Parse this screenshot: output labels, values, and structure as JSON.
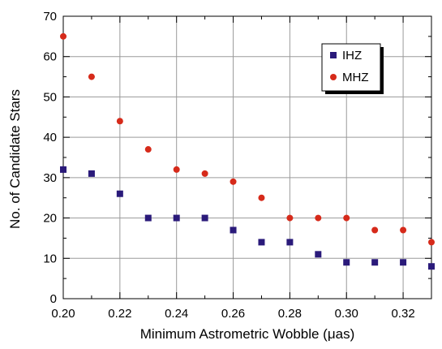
{
  "chart_data": {
    "type": "scatter",
    "title": "",
    "xlabel": "Minimum Astrometric Wobble (μas)",
    "ylabel": "No. of Candidate Stars",
    "xlim": [
      0.2,
      0.33
    ],
    "ylim": [
      0,
      70
    ],
    "xticks": [
      0.2,
      0.22,
      0.24,
      0.26,
      0.28,
      0.3,
      0.32
    ],
    "xtick_labels": [
      "0.20",
      "0.22",
      "0.24",
      "0.26",
      "0.28",
      "0.30",
      "0.32"
    ],
    "yticks": [
      0,
      10,
      20,
      30,
      40,
      50,
      60,
      70
    ],
    "ytick_labels": [
      "0",
      "10",
      "20",
      "30",
      "40",
      "50",
      "60",
      "70"
    ],
    "grid": true,
    "legend_position": "top-right",
    "series": [
      {
        "name": "IHZ",
        "marker": "square",
        "color": "#2a1a7a",
        "x": [
          0.2,
          0.21,
          0.22,
          0.23,
          0.24,
          0.25,
          0.26,
          0.27,
          0.28,
          0.29,
          0.3,
          0.31,
          0.32,
          0.33
        ],
        "y": [
          32,
          31,
          26,
          20,
          20,
          20,
          17,
          14,
          14,
          11,
          9,
          9,
          9,
          8
        ]
      },
      {
        "name": "MHZ",
        "marker": "circle",
        "color": "#d62a1a",
        "x": [
          0.2,
          0.21,
          0.22,
          0.23,
          0.24,
          0.25,
          0.26,
          0.27,
          0.28,
          0.29,
          0.3,
          0.31,
          0.32,
          0.33
        ],
        "y": [
          65,
          55,
          44,
          37,
          32,
          31,
          29,
          25,
          20,
          20,
          20,
          17,
          17,
          14
        ]
      }
    ]
  }
}
